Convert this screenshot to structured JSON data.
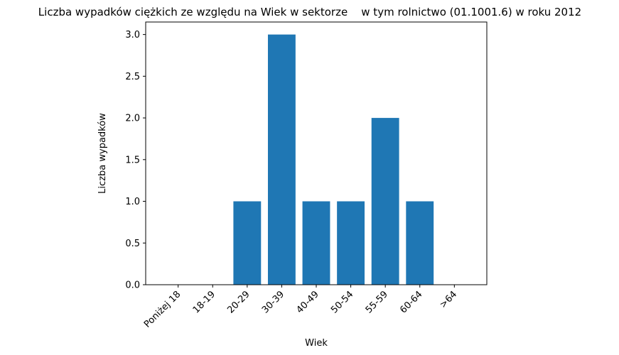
{
  "chart_data": {
    "type": "bar",
    "title": "Liczba wypadków ciężkich ze względu na Wiek w sektorze    w tym rolnictwo (01.1001.6) w roku 2012",
    "xlabel": "Wiek",
    "ylabel": "Liczba wypadków",
    "categories": [
      "Poniżej 18",
      "18-19",
      "20-29",
      "30-39",
      "40-49",
      "50-54",
      "55-59",
      "60-64",
      ">64"
    ],
    "values": [
      0,
      0,
      1,
      3,
      1,
      1,
      2,
      1,
      0
    ],
    "ylim": [
      0,
      3.15
    ],
    "yticks": [
      0.0,
      0.5,
      1.0,
      1.5,
      2.0,
      2.5,
      3.0
    ],
    "ytick_labels": [
      "0.0",
      "0.5",
      "1.0",
      "1.5",
      "2.0",
      "2.5",
      "3.0"
    ],
    "bar_color": "#1f77b4",
    "grid": false,
    "legend": "none"
  }
}
